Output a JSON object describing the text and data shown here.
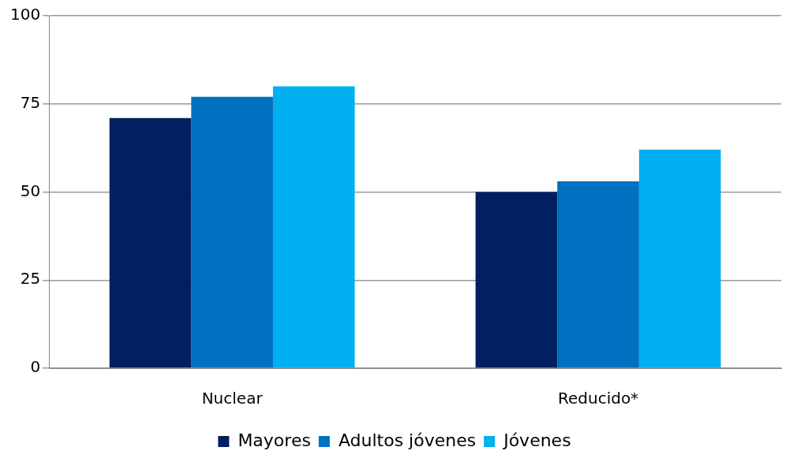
{
  "chart_data": {
    "type": "bar",
    "categories": [
      "Nuclear",
      "Reducido*"
    ],
    "series": [
      {
        "name": "Mayores",
        "color": "#002060",
        "values": [
          71,
          50
        ]
      },
      {
        "name": "Adultos jóvenes",
        "color": "#0070c0",
        "values": [
          77,
          53
        ]
      },
      {
        "name": "Jóvenes",
        "color": "#00b0f0",
        "values": [
          80,
          62
        ]
      }
    ],
    "ylim": [
      0,
      100
    ],
    "yticks": [
      0,
      25,
      50,
      75,
      100
    ],
    "grid": "y",
    "legend": "bottom"
  }
}
